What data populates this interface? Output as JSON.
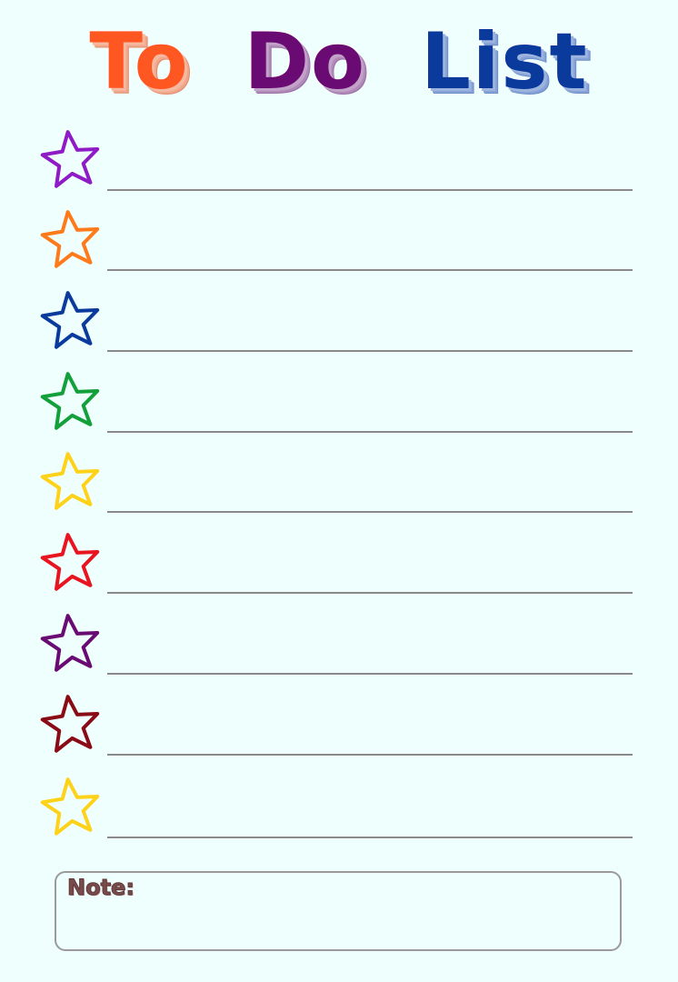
{
  "title": {
    "words": [
      {
        "text": "To",
        "color": "#ff5722"
      },
      {
        "text": "Do",
        "color": "#6a0a73"
      },
      {
        "text": "List",
        "color": "#0a3a9c"
      }
    ]
  },
  "items": [
    {
      "star_color": "#8e1bc6"
    },
    {
      "star_color": "#ff7a1a"
    },
    {
      "star_color": "#0a3a9c"
    },
    {
      "star_color": "#13a03a"
    },
    {
      "star_color": "#ffd21a"
    },
    {
      "star_color": "#e8141f"
    },
    {
      "star_color": "#6a0a73"
    },
    {
      "star_color": "#8a0a16"
    },
    {
      "star_color": "#ffd21a"
    }
  ],
  "note": {
    "label": "Note:"
  }
}
